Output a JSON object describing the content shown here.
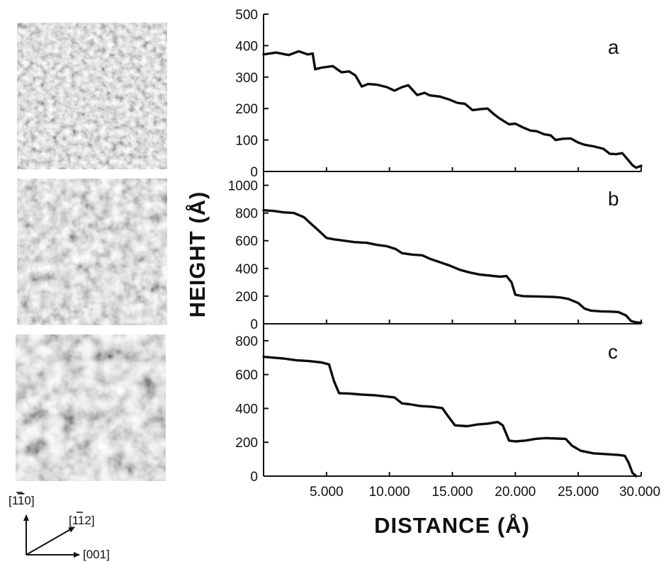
{
  "figure": {
    "panels": [
      "a",
      "b",
      "c"
    ],
    "xlabel": "DISTANCE (Å)",
    "ylabel": "HEIGHT (Å)",
    "x_tick_labels": [
      "5.000",
      "10.000",
      "15.000",
      "20.000",
      "25.000",
      "30.000"
    ],
    "direction_labels": [
      "[1̅1̅0]",
      "[1̅1̅2]",
      "[001]"
    ]
  },
  "direction_labels": {
    "vertical": "[1",
    "vertical_bar": "1",
    "vertical_end": "0]",
    "diagonal": "[1",
    "diagonal_bar": "1",
    "diagonal_end": "2]",
    "horizontal": "[001]"
  },
  "colors": {
    "line": "#0d0d0d",
    "image_light": "#d8d8d8",
    "image_dark": "#3a3a3a"
  },
  "icons": [
    "stm-image-a",
    "stm-image-b",
    "stm-image-c",
    "arrow-icon"
  ],
  "chart_data": [
    {
      "type": "line",
      "panel": "a",
      "xlabel": "DISTANCE (Å)",
      "ylabel": "HEIGHT (Å)",
      "xlim": [
        0,
        30000
      ],
      "ylim": [
        0,
        500
      ],
      "yticks": [
        0,
        100,
        200,
        300,
        400,
        500
      ],
      "xticks": [
        5000,
        10000,
        15000,
        20000,
        25000,
        30000
      ],
      "x": [
        0,
        1000,
        2000,
        2800,
        3500,
        3900,
        4100,
        4600,
        5500,
        6200,
        6800,
        7300,
        7800,
        8300,
        9000,
        9800,
        10400,
        11000,
        11500,
        12200,
        12800,
        13200,
        14000,
        14800,
        15400,
        16000,
        16600,
        17200,
        17800,
        18300,
        18700,
        19100,
        19500,
        20000,
        20600,
        21200,
        21700,
        22300,
        22800,
        23200,
        23800,
        24400,
        25000,
        25500,
        26200,
        27000,
        27500,
        28000,
        28500,
        29000,
        29300,
        29600,
        30000
      ],
      "y": [
        372,
        378,
        370,
        382,
        372,
        375,
        325,
        330,
        335,
        315,
        318,
        305,
        270,
        278,
        276,
        268,
        257,
        268,
        274,
        243,
        250,
        242,
        238,
        228,
        218,
        215,
        195,
        198,
        200,
        182,
        170,
        160,
        150,
        152,
        140,
        130,
        128,
        118,
        115,
        100,
        104,
        105,
        92,
        85,
        80,
        72,
        56,
        55,
        58,
        35,
        20,
        12,
        18
      ]
    },
    {
      "type": "line",
      "panel": "b",
      "xlabel": "DISTANCE (Å)",
      "ylabel": "HEIGHT (Å)",
      "xlim": [
        0,
        30000
      ],
      "ylim": [
        0,
        1100
      ],
      "yticks": [
        0,
        200,
        400,
        600,
        800,
        1000
      ],
      "xticks": [
        5000,
        10000,
        15000,
        20000,
        25000,
        30000
      ],
      "x": [
        0,
        800,
        1600,
        2400,
        3200,
        3800,
        4300,
        5000,
        5600,
        6400,
        7200,
        8200,
        9000,
        9800,
        10500,
        11000,
        11800,
        12600,
        13200,
        14000,
        14800,
        15600,
        16400,
        17200,
        18000,
        18800,
        19300,
        19700,
        20000,
        20600,
        21400,
        22200,
        23000,
        23600,
        24200,
        25000,
        25500,
        26000,
        26800,
        27600,
        28200,
        28800,
        29200,
        29600,
        30000
      ],
      "y": [
        820,
        815,
        805,
        800,
        770,
        720,
        680,
        620,
        610,
        600,
        590,
        585,
        570,
        560,
        540,
        510,
        500,
        495,
        470,
        445,
        420,
        390,
        370,
        355,
        348,
        340,
        345,
        300,
        210,
        200,
        198,
        196,
        194,
        190,
        180,
        150,
        110,
        95,
        90,
        88,
        85,
        60,
        20,
        10,
        8
      ]
    },
    {
      "type": "line",
      "panel": "c",
      "xlabel": "DISTANCE (Å)",
      "ylabel": "HEIGHT (Å)",
      "xlim": [
        0,
        30000
      ],
      "ylim": [
        0,
        900
      ],
      "yticks": [
        0,
        200,
        400,
        600,
        800
      ],
      "xticks": [
        5000,
        10000,
        15000,
        20000,
        25000,
        30000
      ],
      "x": [
        0,
        800,
        1600,
        2600,
        3600,
        4600,
        5200,
        5600,
        6000,
        6800,
        7800,
        8800,
        9800,
        10400,
        11000,
        11600,
        12400,
        13400,
        14200,
        14600,
        15200,
        16200,
        17000,
        17800,
        18600,
        19000,
        19500,
        20000,
        20800,
        21600,
        22400,
        23400,
        24000,
        24500,
        25200,
        26200,
        27200,
        28200,
        28700,
        29000,
        29300,
        29600
      ],
      "y": [
        705,
        700,
        695,
        685,
        680,
        672,
        660,
        560,
        490,
        488,
        482,
        478,
        470,
        465,
        430,
        425,
        415,
        410,
        402,
        360,
        300,
        295,
        305,
        310,
        320,
        300,
        210,
        205,
        210,
        220,
        225,
        222,
        220,
        180,
        150,
        135,
        130,
        125,
        120,
        80,
        20,
        0
      ]
    }
  ]
}
